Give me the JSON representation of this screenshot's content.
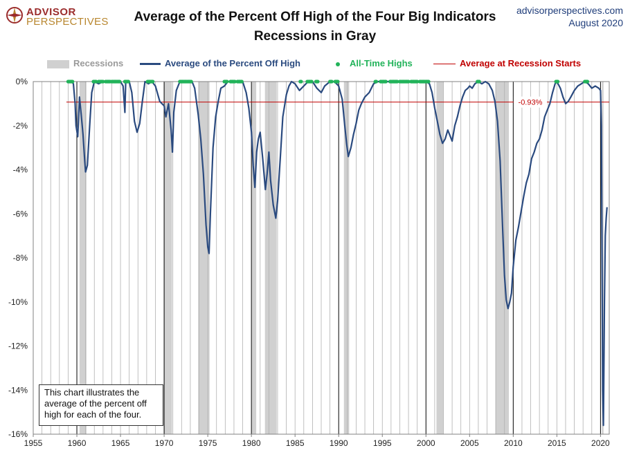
{
  "brand": {
    "line1": "ADVISOR",
    "line2": "PERSPECTIVES"
  },
  "header": {
    "title_line1": "Average of the Percent Off High of the Four Big Indicators",
    "title_line2": "Recessions in Gray",
    "source": "advisorperspectives.com",
    "date": "August 2020"
  },
  "note": "This chart illustrates the average of the percent off high for each of the four.",
  "colors": {
    "line": "#2a4a7f",
    "recession": "#d0d0d0",
    "ath": "#22b35a",
    "avg_line": "#c00000",
    "avg_text": "#c00000",
    "grid": "#b0b0b0",
    "decade": "#000000"
  },
  "chart_data": {
    "type": "line",
    "x_unit": "year",
    "xlim": [
      1955,
      2021
    ],
    "ylim": [
      -16,
      0
    ],
    "x_ticks": [
      1955,
      1960,
      1965,
      1970,
      1975,
      1980,
      1985,
      1990,
      1995,
      2000,
      2005,
      2010,
      2015,
      2020
    ],
    "y_ticks": [
      0,
      -2,
      -4,
      -6,
      -8,
      -10,
      -12,
      -14,
      -16
    ],
    "y_tick_labels": [
      "0%",
      "-2%",
      "-4%",
      "-6%",
      "-8%",
      "-10%",
      "-12%",
      "-14%",
      "-16%"
    ],
    "x_tick_labels": [
      "1955",
      "1960",
      "1965",
      "1970",
      "1975",
      "1980",
      "1985",
      "1990",
      "1995",
      "2000",
      "2005",
      "2010",
      "2015",
      "2020"
    ],
    "grid": "vertical lines every year; solid black at decade years",
    "legend_position": "top",
    "legend": {
      "recessions": "Recessions",
      "series": "Average of the Percent Off High",
      "ath": "All-Time Highs",
      "avg": "Average at Recession Starts"
    },
    "recessions": [
      [
        1960.3,
        1961.1
      ],
      [
        1969.95,
        1970.9
      ],
      [
        1973.9,
        1975.2
      ],
      [
        1980.05,
        1980.55
      ],
      [
        1981.55,
        1982.9
      ],
      [
        1990.6,
        1991.2
      ],
      [
        2001.2,
        2002.0
      ],
      [
        2007.95,
        2009.5
      ],
      [
        2020.15,
        2020.35
      ]
    ],
    "average_at_recession_starts": {
      "value": -0.93,
      "label": "-0.93%"
    },
    "series": [
      {
        "name": "Average of the Percent Off High",
        "points": [
          [
            1959.0,
            0
          ],
          [
            1959.4,
            0
          ],
          [
            1959.6,
            -0.1
          ],
          [
            1959.8,
            -1.0
          ],
          [
            1959.9,
            -2.0
          ],
          [
            1960.1,
            -2.5
          ],
          [
            1960.3,
            -0.7
          ],
          [
            1960.5,
            -1.5
          ],
          [
            1960.7,
            -2.4
          ],
          [
            1960.9,
            -3.6
          ],
          [
            1961.0,
            -4.1
          ],
          [
            1961.2,
            -3.8
          ],
          [
            1961.5,
            -1.8
          ],
          [
            1961.7,
            -0.5
          ],
          [
            1962.0,
            0
          ],
          [
            1962.5,
            -0.1
          ],
          [
            1963.0,
            0
          ],
          [
            1963.5,
            0
          ],
          [
            1964.0,
            0
          ],
          [
            1964.5,
            0
          ],
          [
            1965.0,
            0
          ],
          [
            1965.3,
            -0.2
          ],
          [
            1965.5,
            -1.4
          ],
          [
            1965.6,
            0
          ],
          [
            1966.0,
            0
          ],
          [
            1966.3,
            -0.5
          ],
          [
            1966.6,
            -1.8
          ],
          [
            1966.9,
            -2.3
          ],
          [
            1967.2,
            -1.9
          ],
          [
            1967.5,
            -0.9
          ],
          [
            1967.8,
            0
          ],
          [
            1968.2,
            -0.1
          ],
          [
            1968.6,
            0
          ],
          [
            1969.0,
            -0.2
          ],
          [
            1969.5,
            -0.9
          ],
          [
            1970.0,
            -1.1
          ],
          [
            1970.2,
            -1.6
          ],
          [
            1970.5,
            -1.0
          ],
          [
            1970.8,
            -2.2
          ],
          [
            1970.95,
            -3.2
          ],
          [
            1971.1,
            -1.4
          ],
          [
            1971.4,
            -0.4
          ],
          [
            1971.8,
            0
          ],
          [
            1972.5,
            0
          ],
          [
            1973.2,
            0
          ],
          [
            1973.5,
            -0.3
          ],
          [
            1973.9,
            -1.5
          ],
          [
            1974.2,
            -2.6
          ],
          [
            1974.5,
            -4.2
          ],
          [
            1974.8,
            -6.5
          ],
          [
            1975.0,
            -7.5
          ],
          [
            1975.15,
            -7.8
          ],
          [
            1975.3,
            -6.0
          ],
          [
            1975.6,
            -3.0
          ],
          [
            1975.9,
            -1.6
          ],
          [
            1976.2,
            -0.9
          ],
          [
            1976.5,
            -0.3
          ],
          [
            1976.9,
            -0.2
          ],
          [
            1977.3,
            0
          ],
          [
            1977.7,
            0
          ],
          [
            1978.0,
            0
          ],
          [
            1978.5,
            0
          ],
          [
            1979.0,
            0
          ],
          [
            1979.4,
            -0.5
          ],
          [
            1979.7,
            -1.2
          ],
          [
            1980.0,
            -2.3
          ],
          [
            1980.2,
            -3.8
          ],
          [
            1980.4,
            -4.8
          ],
          [
            1980.6,
            -3.2
          ],
          [
            1980.8,
            -2.6
          ],
          [
            1981.0,
            -2.3
          ],
          [
            1981.3,
            -3.5
          ],
          [
            1981.6,
            -4.9
          ],
          [
            1981.8,
            -4.2
          ],
          [
            1982.0,
            -3.2
          ],
          [
            1982.2,
            -4.5
          ],
          [
            1982.5,
            -5.6
          ],
          [
            1982.8,
            -6.2
          ],
          [
            1983.0,
            -5.4
          ],
          [
            1983.3,
            -3.5
          ],
          [
            1983.6,
            -1.6
          ],
          [
            1984.0,
            -0.6
          ],
          [
            1984.3,
            -0.2
          ],
          [
            1984.6,
            0
          ],
          [
            1985.0,
            -0.1
          ],
          [
            1985.5,
            -0.4
          ],
          [
            1986.0,
            -0.2
          ],
          [
            1986.5,
            0
          ],
          [
            1987.0,
            0
          ],
          [
            1987.5,
            -0.3
          ],
          [
            1988.0,
            -0.5
          ],
          [
            1988.4,
            -0.2
          ],
          [
            1989.0,
            0
          ],
          [
            1989.5,
            0
          ],
          [
            1990.0,
            -0.2
          ],
          [
            1990.4,
            -0.8
          ],
          [
            1990.7,
            -2.0
          ],
          [
            1990.9,
            -2.8
          ],
          [
            1991.1,
            -3.4
          ],
          [
            1991.4,
            -3.0
          ],
          [
            1991.7,
            -2.4
          ],
          [
            1992.0,
            -1.9
          ],
          [
            1992.3,
            -1.3
          ],
          [
            1992.6,
            -1.0
          ],
          [
            1993.0,
            -0.7
          ],
          [
            1993.5,
            -0.5
          ],
          [
            1994.0,
            -0.1
          ],
          [
            1994.5,
            0
          ],
          [
            1995.0,
            0
          ],
          [
            1995.5,
            0
          ],
          [
            1996.0,
            0
          ],
          [
            1996.5,
            0
          ],
          [
            1997.0,
            0
          ],
          [
            1997.5,
            0
          ],
          [
            1998.0,
            0
          ],
          [
            1998.5,
            0
          ],
          [
            1999.0,
            0
          ],
          [
            1999.5,
            0
          ],
          [
            2000.0,
            0
          ],
          [
            2000.4,
            -0.1
          ],
          [
            2000.7,
            -0.5
          ],
          [
            2001.0,
            -1.2
          ],
          [
            2001.3,
            -1.8
          ],
          [
            2001.6,
            -2.4
          ],
          [
            2001.9,
            -2.8
          ],
          [
            2002.2,
            -2.6
          ],
          [
            2002.5,
            -2.2
          ],
          [
            2002.8,
            -2.5
          ],
          [
            2003.0,
            -2.7
          ],
          [
            2003.3,
            -2.0
          ],
          [
            2003.6,
            -1.6
          ],
          [
            2003.9,
            -1.1
          ],
          [
            2004.2,
            -0.7
          ],
          [
            2004.5,
            -0.4
          ],
          [
            2004.8,
            -0.3
          ],
          [
            2005.0,
            -0.2
          ],
          [
            2005.3,
            -0.3
          ],
          [
            2005.6,
            -0.1
          ],
          [
            2006.0,
            0
          ],
          [
            2006.4,
            -0.1
          ],
          [
            2006.8,
            0
          ],
          [
            2007.2,
            -0.1
          ],
          [
            2007.6,
            -0.4
          ],
          [
            2007.9,
            -0.9
          ],
          [
            2008.2,
            -1.8
          ],
          [
            2008.5,
            -3.6
          ],
          [
            2008.8,
            -6.8
          ],
          [
            2009.0,
            -8.8
          ],
          [
            2009.2,
            -9.9
          ],
          [
            2009.4,
            -10.3
          ],
          [
            2009.6,
            -10.0
          ],
          [
            2009.8,
            -9.6
          ],
          [
            2010.0,
            -8.4
          ],
          [
            2010.3,
            -7.2
          ],
          [
            2010.6,
            -6.6
          ],
          [
            2010.9,
            -5.9
          ],
          [
            2011.2,
            -5.2
          ],
          [
            2011.5,
            -4.6
          ],
          [
            2011.8,
            -4.2
          ],
          [
            2012.1,
            -3.5
          ],
          [
            2012.4,
            -3.2
          ],
          [
            2012.7,
            -2.8
          ],
          [
            2013.0,
            -2.6
          ],
          [
            2013.3,
            -2.2
          ],
          [
            2013.6,
            -1.6
          ],
          [
            2013.9,
            -1.3
          ],
          [
            2014.2,
            -1.0
          ],
          [
            2014.5,
            -0.5
          ],
          [
            2014.8,
            -0.1
          ],
          [
            2015.0,
            0
          ],
          [
            2015.4,
            -0.3
          ],
          [
            2015.7,
            -0.7
          ],
          [
            2016.0,
            -1.0
          ],
          [
            2016.3,
            -0.9
          ],
          [
            2016.6,
            -0.7
          ],
          [
            2017.0,
            -0.4
          ],
          [
            2017.4,
            -0.2
          ],
          [
            2017.8,
            -0.1
          ],
          [
            2018.2,
            0
          ],
          [
            2018.6,
            -0.1
          ],
          [
            2019.0,
            -0.3
          ],
          [
            2019.4,
            -0.2
          ],
          [
            2019.8,
            -0.3
          ],
          [
            2020.0,
            -0.4
          ],
          [
            2020.1,
            -2.0
          ],
          [
            2020.25,
            -14.0
          ],
          [
            2020.33,
            -15.6
          ],
          [
            2020.45,
            -10.0
          ],
          [
            2020.55,
            -7.0
          ],
          [
            2020.65,
            -6.2
          ],
          [
            2020.75,
            -5.7
          ]
        ]
      }
    ],
    "all_time_highs": [
      [
        1959.0,
        1959.5
      ],
      [
        1961.9,
        1962.2
      ],
      [
        1962.5,
        1963.0
      ],
      [
        1963.3,
        1963.8
      ],
      [
        1964.0,
        1964.9
      ],
      [
        1965.5,
        1965.9
      ],
      [
        1968.1,
        1968.7
      ],
      [
        1971.8,
        1973.1
      ],
      [
        1976.9,
        1977.2
      ],
      [
        1977.6,
        1978.1
      ],
      [
        1978.4,
        1978.9
      ],
      [
        1985.6,
        1985.7
      ],
      [
        1986.4,
        1986.9
      ],
      [
        1987.4,
        1987.6
      ],
      [
        1989.0,
        1989.2
      ],
      [
        1989.6,
        1989.9
      ],
      [
        1994.2,
        1994.3
      ],
      [
        1994.8,
        1995.4
      ],
      [
        1995.9,
        1996.7
      ],
      [
        1997.0,
        1998.0
      ],
      [
        1998.3,
        1999.0
      ],
      [
        1999.3,
        2000.0
      ],
      [
        2000.1,
        2000.3
      ],
      [
        2005.9,
        2006.1
      ],
      [
        2014.9,
        2015.1
      ],
      [
        2018.2,
        2018.5
      ]
    ]
  }
}
